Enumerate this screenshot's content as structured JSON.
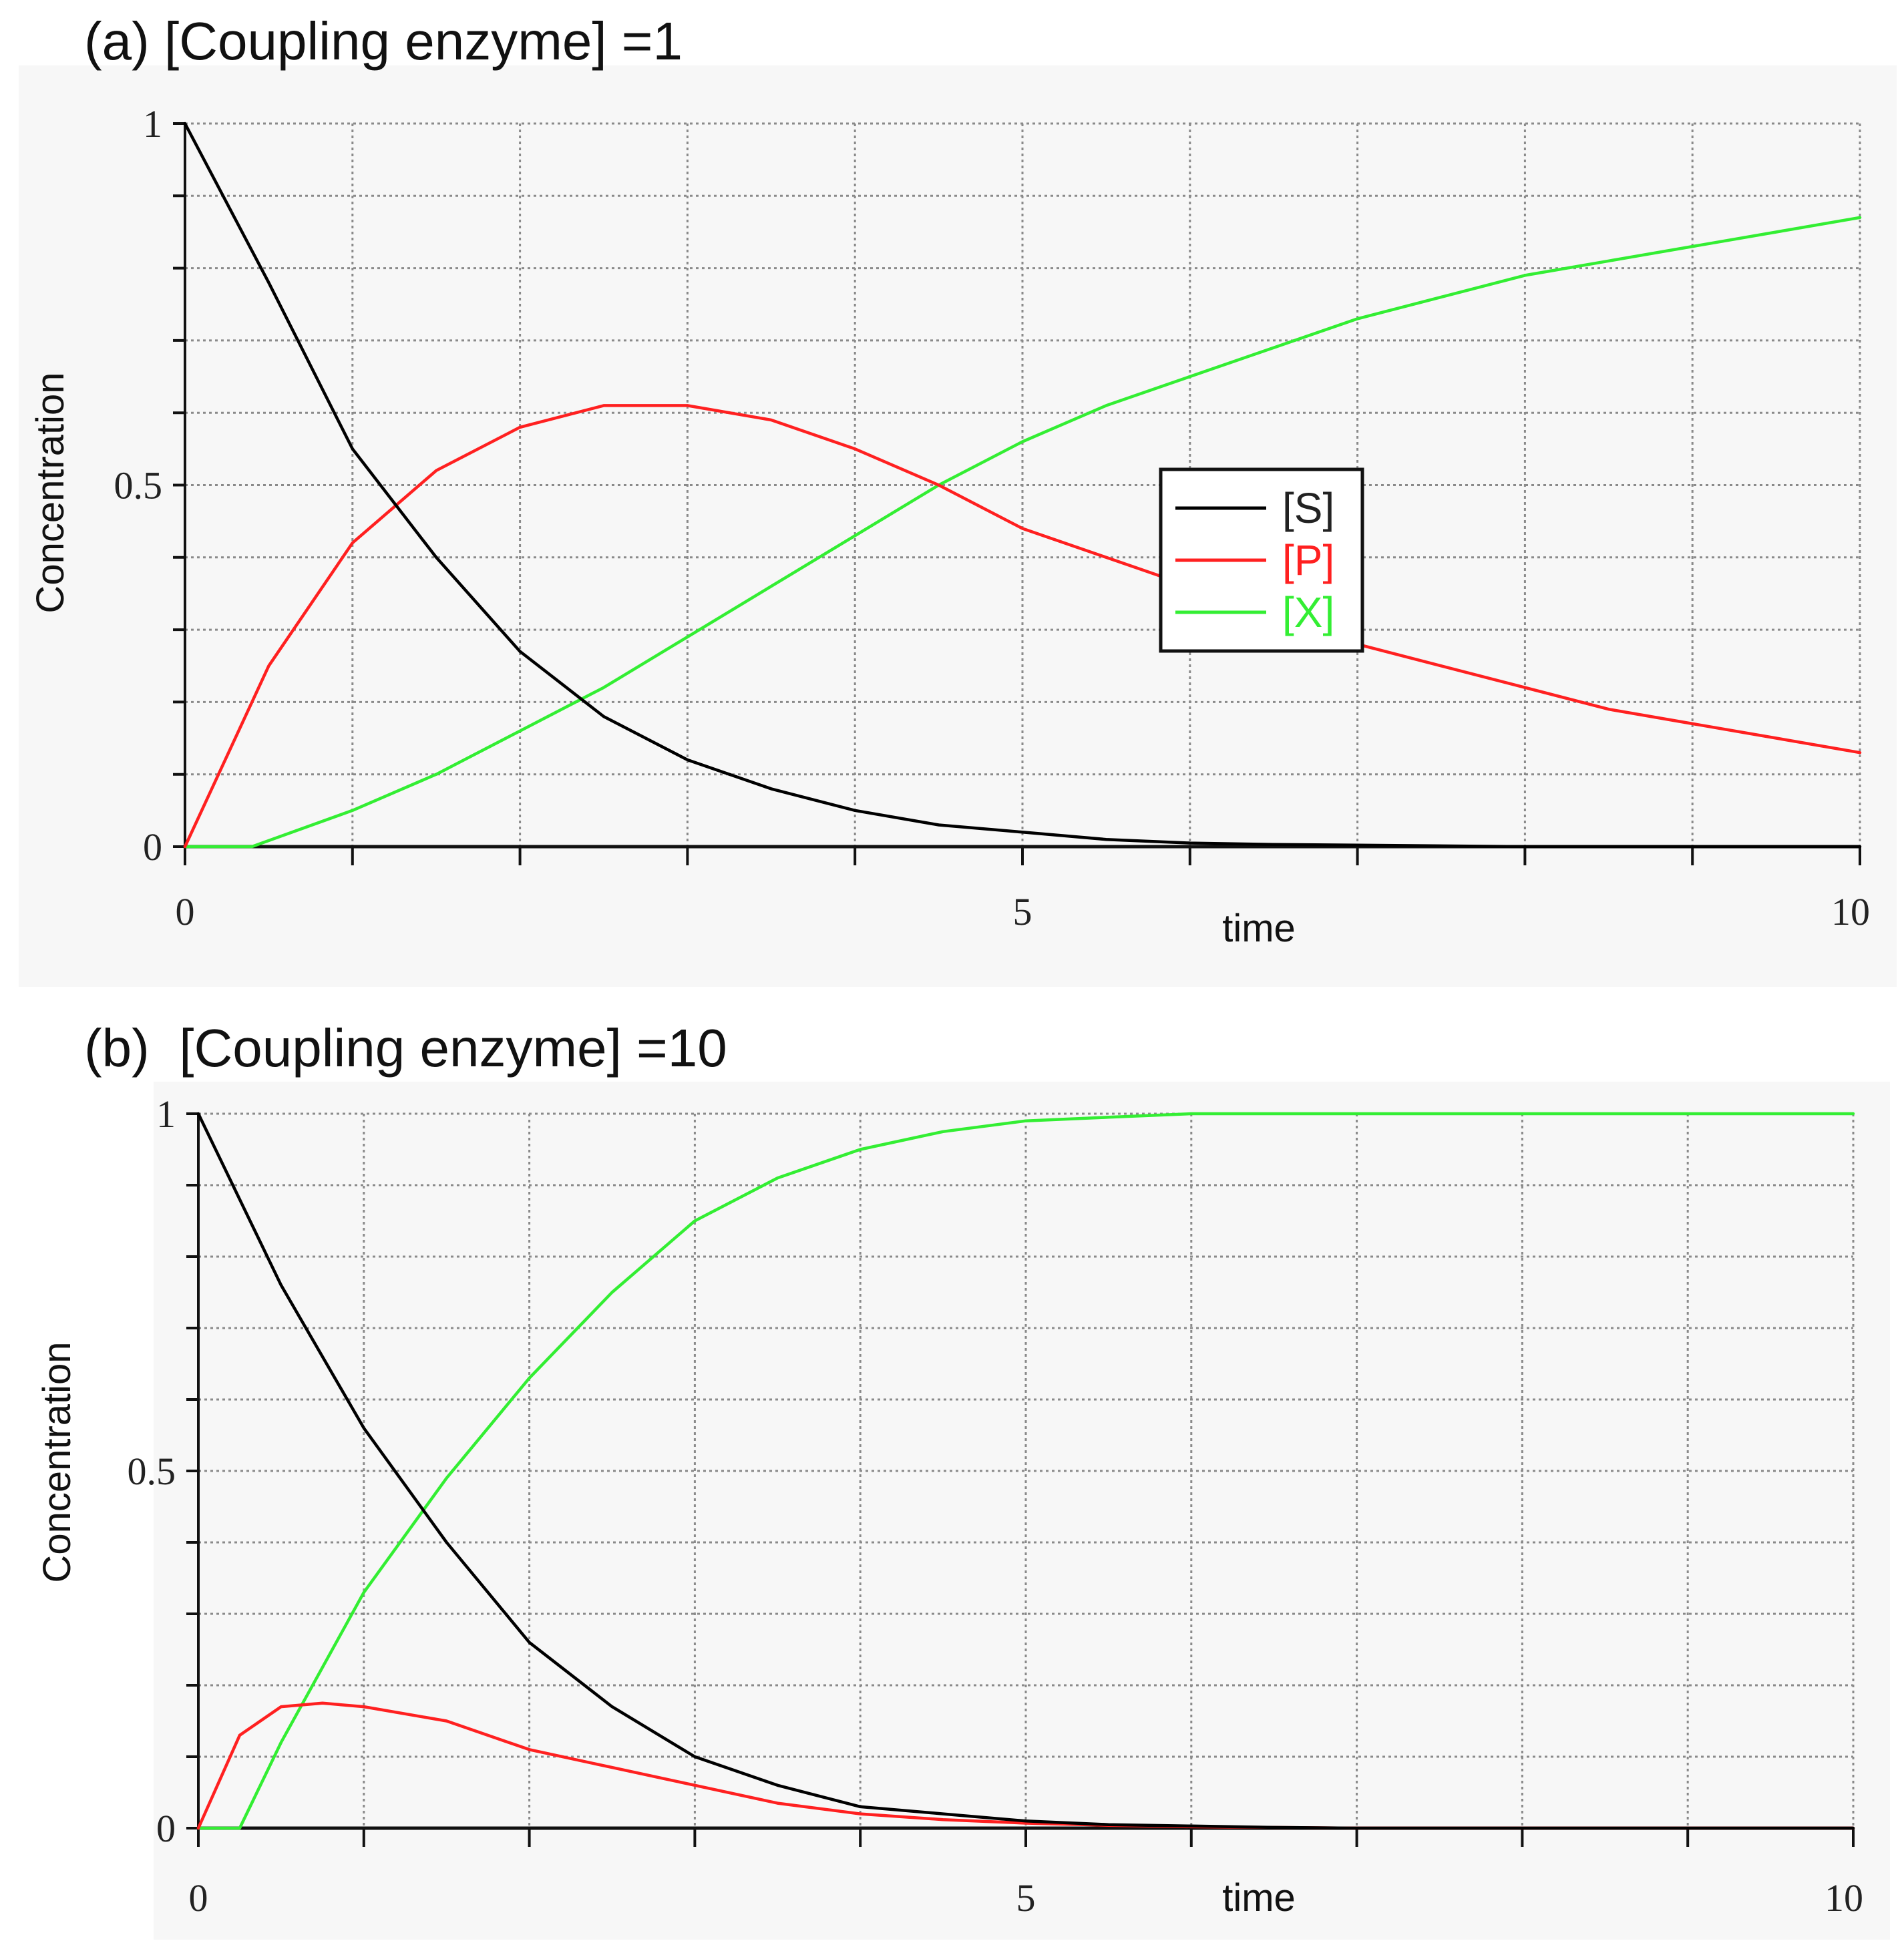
{
  "chart_data": [
    {
      "type": "line",
      "title": "(a) [Coupling enzyme] =1",
      "xlabel": "time",
      "ylabel": "Concentration",
      "xlim": [
        0,
        10
      ],
      "ylim": [
        0,
        1
      ],
      "x_ticks": [
        0,
        5,
        10
      ],
      "y_ticks": [
        0,
        0.5,
        1
      ],
      "x_tick_labels": [
        "0",
        "5",
        "10"
      ],
      "y_tick_labels": [
        "0",
        "0.5",
        "1"
      ],
      "grid": true,
      "legend": {
        "placement": "center-right",
        "entries": [
          "[S]",
          "[P]",
          "[X]"
        ]
      },
      "series": [
        {
          "name": "[S]",
          "color": "#000000",
          "x": [
            0,
            0.5,
            1,
            1.5,
            2,
            2.5,
            3,
            3.5,
            4,
            4.5,
            5,
            5.5,
            6,
            6.5,
            7,
            8,
            9,
            10
          ],
          "y": [
            1.0,
            0.78,
            0.55,
            0.4,
            0.27,
            0.18,
            0.12,
            0.08,
            0.05,
            0.03,
            0.02,
            0.01,
            0.005,
            0.003,
            0.002,
            0,
            0,
            0
          ]
        },
        {
          "name": "[P]",
          "color": "#ff2020",
          "x": [
            0,
            0.5,
            1,
            1.5,
            2,
            2.5,
            3,
            3.5,
            4,
            4.5,
            5,
            5.5,
            6,
            6.5,
            7,
            7.5,
            8,
            8.5,
            9,
            9.5,
            10
          ],
          "y": [
            0,
            0.25,
            0.42,
            0.52,
            0.58,
            0.61,
            0.61,
            0.59,
            0.55,
            0.5,
            0.44,
            0.4,
            0.36,
            0.32,
            0.28,
            0.25,
            0.22,
            0.19,
            0.17,
            0.15,
            0.13
          ]
        },
        {
          "name": "[X]",
          "color": "#33ee33",
          "x": [
            0,
            0.4,
            1,
            1.5,
            2,
            2.5,
            3,
            3.5,
            4,
            4.5,
            5,
            5.5,
            6,
            6.5,
            7,
            7.5,
            8,
            8.5,
            9,
            9.5,
            10
          ],
          "y": [
            0,
            0,
            0.05,
            0.1,
            0.16,
            0.22,
            0.29,
            0.36,
            0.43,
            0.5,
            0.56,
            0.61,
            0.65,
            0.69,
            0.73,
            0.76,
            0.79,
            0.81,
            0.83,
            0.85,
            0.87
          ]
        }
      ]
    },
    {
      "type": "line",
      "title": "(b)  [Coupling enzyme] =10",
      "xlabel": "time",
      "ylabel": "Concentration",
      "xlim": [
        0,
        10
      ],
      "ylim": [
        0,
        1
      ],
      "x_ticks": [
        0,
        5,
        10
      ],
      "y_ticks": [
        0,
        0.5,
        1
      ],
      "x_tick_labels": [
        "0",
        "5",
        "10"
      ],
      "y_tick_labels": [
        "0",
        "0.5",
        "1"
      ],
      "grid": true,
      "series": [
        {
          "name": "[S]",
          "color": "#000000",
          "x": [
            0,
            0.5,
            1,
            1.5,
            2,
            2.5,
            3,
            3.5,
            4,
            4.5,
            5,
            5.5,
            6,
            6.5,
            7,
            8,
            9,
            10
          ],
          "y": [
            1.0,
            0.76,
            0.56,
            0.4,
            0.26,
            0.17,
            0.1,
            0.06,
            0.03,
            0.02,
            0.01,
            0.005,
            0.003,
            0.001,
            0,
            0,
            0,
            0
          ]
        },
        {
          "name": "[P]",
          "color": "#ff2020",
          "x": [
            0,
            0.25,
            0.5,
            0.75,
            1,
            1.5,
            2,
            2.5,
            3,
            3.5,
            4,
            4.5,
            5,
            5.5,
            6,
            7,
            8,
            9,
            10
          ],
          "y": [
            0,
            0.13,
            0.17,
            0.175,
            0.17,
            0.15,
            0.11,
            0.085,
            0.06,
            0.035,
            0.02,
            0.012,
            0.007,
            0.004,
            0.002,
            0,
            0,
            0,
            0
          ]
        },
        {
          "name": "[X]",
          "color": "#33ee33",
          "x": [
            0,
            0.25,
            0.5,
            1,
            1.5,
            2,
            2.5,
            3,
            3.5,
            4,
            4.5,
            5,
            5.5,
            6,
            7,
            8,
            9,
            10
          ],
          "y": [
            0,
            0,
            0.12,
            0.33,
            0.49,
            0.63,
            0.75,
            0.85,
            0.91,
            0.95,
            0.975,
            0.99,
            0.995,
            1.0,
            1.0,
            1.0,
            1.0,
            1.0
          ]
        }
      ]
    }
  ]
}
